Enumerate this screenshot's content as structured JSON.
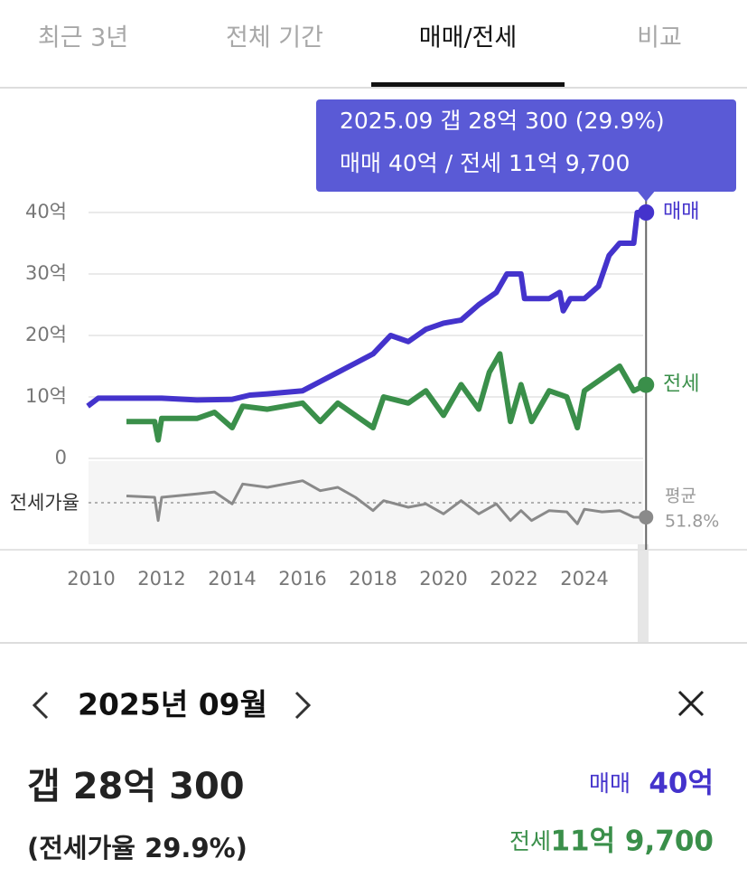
{
  "tabs": {
    "items": [
      "최근 3년",
      "전체 기간",
      "매매/전세",
      "비교"
    ],
    "active": 2
  },
  "chart_data": {
    "type": "line",
    "tooltip": {
      "lines": [
        "2025.09  갭 28억 300 (29.9%)",
        "매매 40억 / 전세 11억 9,700"
      ]
    },
    "xticks": [
      2010,
      2012,
      2014,
      2016,
      2018,
      2020,
      2022,
      2024
    ],
    "xlim": [
      2009.9,
      2025.75
    ],
    "ylim": [
      0,
      40
    ],
    "yticks": [
      0,
      {
        "value": 10,
        "label": "10억"
      },
      {
        "value": 20,
        "label": "20억"
      },
      {
        "value": 30,
        "label": "30억"
      },
      {
        "value": 40,
        "label": "40억"
      }
    ],
    "grid": true,
    "series": [
      {
        "name": "매매",
        "color": "#4433cc",
        "x": [
          2009.9,
          2010.2,
          2011,
          2012,
          2013,
          2014,
          2014.5,
          2015,
          2016,
          2016.5,
          2017,
          2017.5,
          2018,
          2018.5,
          2019,
          2019.5,
          2020,
          2020.5,
          2021,
          2021.5,
          2021.8,
          2022.2,
          2022.3,
          2023,
          2023.3,
          2023.4,
          2023.6,
          2024,
          2024.4,
          2024.7,
          2025,
          2025.4,
          2025.5,
          2025.75
        ],
        "values": [
          8.5,
          9.8,
          9.8,
          9.8,
          9.5,
          9.6,
          10.3,
          10.5,
          11,
          12.5,
          14,
          15.5,
          17,
          20,
          19,
          21,
          22,
          22.5,
          25,
          27,
          30,
          30,
          26,
          26,
          27,
          24,
          26,
          26,
          28,
          33,
          35,
          35,
          40,
          40
        ]
      },
      {
        "name": "전세",
        "color": "#3a8f4a",
        "x": [
          2011,
          2011.8,
          2011.9,
          2012,
          2013,
          2013.5,
          2014,
          2014.3,
          2015,
          2016,
          2016.5,
          2017,
          2017.5,
          2018,
          2018.3,
          2019,
          2019.5,
          2020,
          2020.5,
          2021,
          2021.3,
          2021.6,
          2021.9,
          2022.2,
          2022.5,
          2023,
          2023.5,
          2023.8,
          2024,
          2024.5,
          2025,
          2025.4,
          2025.75
        ],
        "values": [
          6,
          6,
          3,
          6.5,
          6.5,
          7.5,
          5,
          8.5,
          8,
          9,
          6,
          9,
          7,
          5,
          10,
          9,
          11,
          7,
          12,
          8,
          14,
          17,
          6,
          12,
          6,
          11,
          10,
          5,
          11,
          13,
          15,
          11,
          11.97
        ]
      }
    ],
    "ratio": {
      "name": "전세가율",
      "color": "#8a8a8a",
      "ylim": [
        0,
        120
      ],
      "average_title": "평균",
      "average": 51.8,
      "average_label": "51.8%",
      "x": [
        2011,
        2011.8,
        2011.9,
        2012,
        2013,
        2013.5,
        2014,
        2014.3,
        2015,
        2015.5,
        2016,
        2016.5,
        2017,
        2017.5,
        2018,
        2018.3,
        2019,
        2019.5,
        2020,
        2020.5,
        2021,
        2021.5,
        2021.9,
        2022.2,
        2022.5,
        2023,
        2023.5,
        2023.8,
        2024,
        2024.5,
        2025,
        2025.4,
        2025.75
      ],
      "values": [
        62,
        60,
        25,
        60,
        65,
        68,
        50,
        80,
        75,
        80,
        85,
        70,
        75,
        60,
        40,
        55,
        45,
        50,
        35,
        55,
        35,
        50,
        25,
        40,
        25,
        40,
        38,
        20,
        42,
        38,
        40,
        30,
        29.9
      ]
    }
  },
  "detail": {
    "date": "2025년 09월",
    "gap": "갭 28억 300",
    "ratio": "(전세가율 29.9%)",
    "sale_label": "매매",
    "sale_value": "40억",
    "jeonse_label": "전세",
    "jeonse_value": "11억 9,700"
  }
}
